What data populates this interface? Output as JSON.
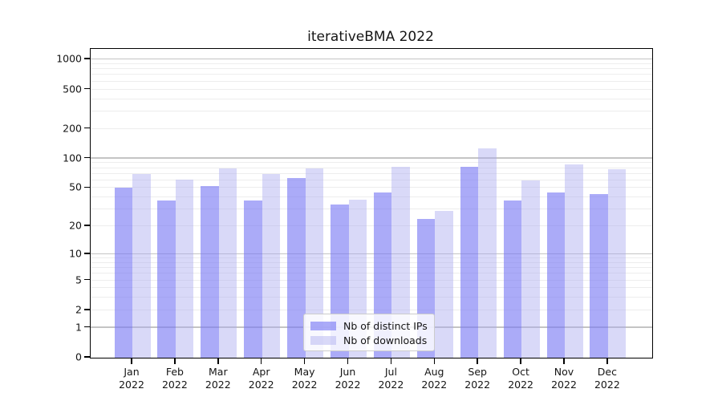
{
  "title": "iterativeBMA 2022",
  "legend": {
    "entries": [
      {
        "label": "Nb of distinct IPs"
      },
      {
        "label": "Nb of downloads"
      }
    ]
  },
  "chart_data": {
    "type": "bar",
    "title": "iterativeBMA 2022",
    "categories": [
      "Jan",
      "Feb",
      "Mar",
      "Apr",
      "May",
      "Jun",
      "Jul",
      "Aug",
      "Sep",
      "Oct",
      "Nov",
      "Dec"
    ],
    "year_label": "2022",
    "series": [
      {
        "name": "Nb of distinct IPs",
        "color": "rgba(120,120,243,0.62)",
        "values": [
          50,
          37,
          52,
          37,
          63,
          34,
          45,
          24,
          82,
          37,
          45,
          43
        ]
      },
      {
        "name": "Nb of downloads",
        "color": "rgba(170,170,240,0.45)",
        "values": [
          70,
          61,
          80,
          70,
          79,
          38,
          83,
          29,
          127,
          60,
          87,
          78
        ]
      }
    ],
    "yscale": "log1p",
    "ytick_labels": [
      "0",
      "1",
      "2",
      "5",
      "10",
      "20",
      "50",
      "100",
      "200",
      "500",
      "1000"
    ],
    "ytick_values": [
      0,
      1,
      2,
      5,
      10,
      20,
      50,
      100,
      200,
      500,
      1000
    ],
    "ylim": [
      0,
      1000
    ],
    "grid": "horizontal",
    "legend_position": "bottom-center"
  }
}
